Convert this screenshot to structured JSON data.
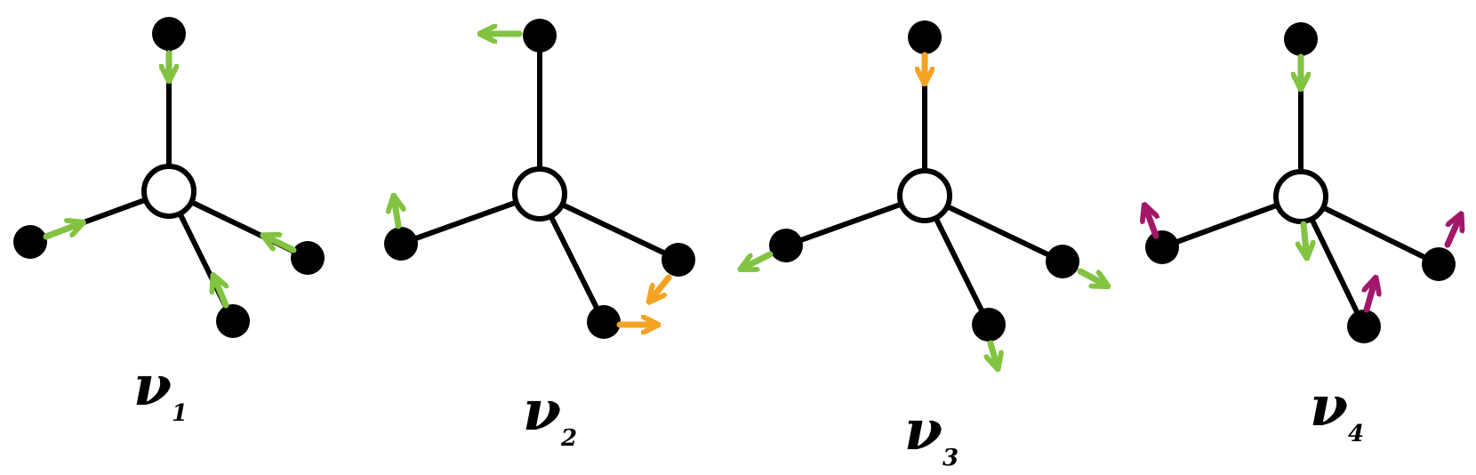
{
  "colors": {
    "bond": "#000000",
    "atom": "#000000",
    "central_fill": "#ffffff",
    "green": "#82c341",
    "orange": "#f5a323",
    "magenta": "#a3176b"
  },
  "modes": [
    {
      "symbol": "ν",
      "subscript": "1",
      "arrows": [
        {
          "atom": "top",
          "color": "green",
          "direction": "inward"
        },
        {
          "atom": "left",
          "color": "green",
          "direction": "inward"
        },
        {
          "atom": "bottom",
          "color": "green",
          "direction": "inward"
        },
        {
          "atom": "right",
          "color": "green",
          "direction": "inward"
        }
      ]
    },
    {
      "symbol": "ν",
      "subscript": "2",
      "arrows": [
        {
          "atom": "top",
          "color": "green",
          "direction": "tangential"
        },
        {
          "atom": "left",
          "color": "green",
          "direction": "tangential"
        },
        {
          "atom": "bottom",
          "color": "orange",
          "direction": "tangential"
        },
        {
          "atom": "right",
          "color": "orange",
          "direction": "tangential"
        }
      ]
    },
    {
      "symbol": "ν",
      "subscript": "3",
      "arrows": [
        {
          "atom": "top",
          "color": "orange",
          "direction": "inward"
        },
        {
          "atom": "left",
          "color": "green",
          "direction": "outward"
        },
        {
          "atom": "bottom",
          "color": "green",
          "direction": "outward"
        },
        {
          "atom": "right",
          "color": "green",
          "direction": "outward"
        }
      ]
    },
    {
      "symbol": "ν",
      "subscript": "4",
      "arrows": [
        {
          "atom": "top",
          "color": "green",
          "direction": "inward"
        },
        {
          "atom": "center",
          "color": "green",
          "direction": "down"
        },
        {
          "atom": "left",
          "color": "magenta",
          "direction": "up"
        },
        {
          "atom": "bottom",
          "color": "magenta",
          "direction": "up"
        },
        {
          "atom": "right",
          "color": "magenta",
          "direction": "up"
        }
      ]
    }
  ]
}
